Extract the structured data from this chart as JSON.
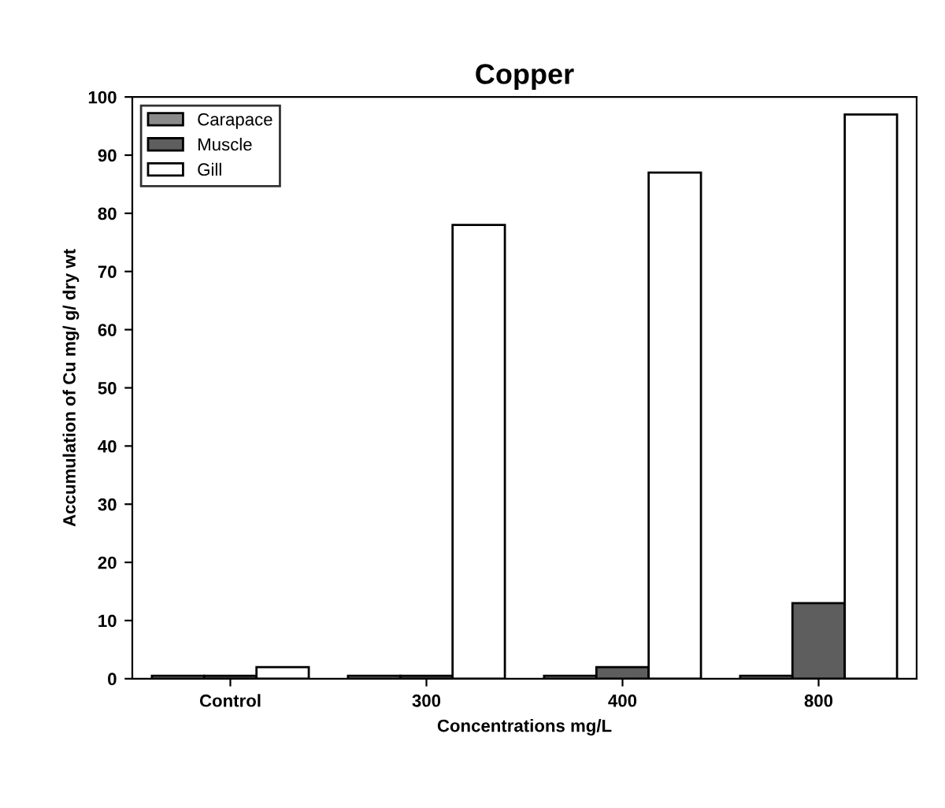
{
  "chart_data": {
    "type": "bar",
    "title": "Copper",
    "xlabel": "Concentrations mg/L",
    "ylabel": "Accumulation of Cu mg/ g/ dry wt",
    "categories": [
      "Control",
      "300",
      "400",
      "800"
    ],
    "series": [
      {
        "name": "Carapace",
        "color": "#8a8a8a",
        "values": [
          0.5,
          0.5,
          0.5,
          0.5
        ]
      },
      {
        "name": "Muscle",
        "color": "#5e5e5e",
        "values": [
          0.5,
          0.5,
          2,
          13
        ]
      },
      {
        "name": "Gill",
        "color": "#ffffff",
        "values": [
          2,
          78,
          87,
          97
        ]
      }
    ],
    "ylim": [
      0,
      100
    ],
    "yticks": [
      0,
      10,
      20,
      30,
      40,
      50,
      60,
      70,
      80,
      90,
      100
    ],
    "grid": false,
    "legend": "top left"
  }
}
